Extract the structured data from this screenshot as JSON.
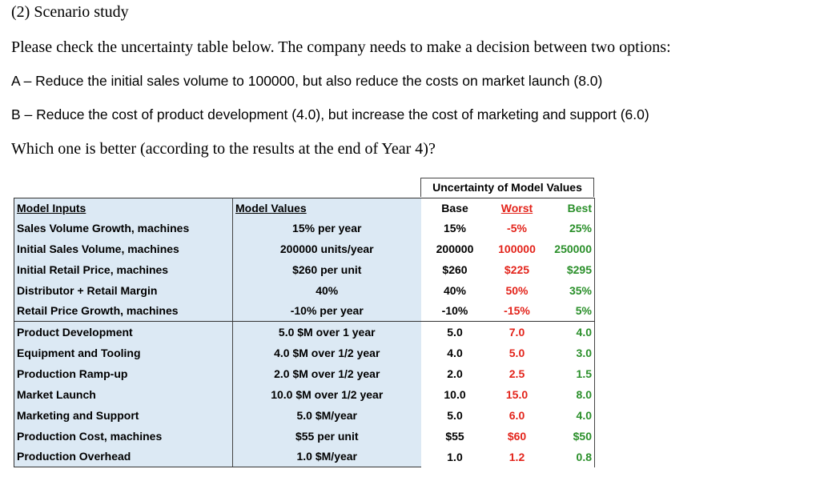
{
  "heading": "(2) Scenario study",
  "paragraphs": [
    "Please check the uncertainty table below. The company needs to make a decision between two options:",
    "A – Reduce the initial sales volume to 100000, but also reduce the costs on market launch (8.0)",
    "B – Reduce the cost of product development (4.0), but increase the cost of marketing and support (6.0)",
    "Which one is better (according to the results at the end of Year 4)?"
  ],
  "table": {
    "uncertainty_title": "Uncertainty of Model Values",
    "columns": [
      "Model Inputs",
      "Model Values",
      "Base",
      "Worst",
      "Best"
    ],
    "rows": [
      [
        "Sales Volume Growth, machines",
        "15% per year",
        "15%",
        "-5%",
        "25%"
      ],
      [
        "Initial Sales Volume, machines",
        "200000 units/year",
        "200000",
        "100000",
        "250000"
      ],
      [
        "Initial Retail Price, machines",
        "$260  per unit",
        "$260",
        "$225",
        "$295"
      ],
      [
        "Distributor + Retail Margin",
        "40%",
        "40%",
        "50%",
        "35%"
      ],
      [
        "Retail Price Growth, machines",
        "-10% per year",
        "-10%",
        "-15%",
        "5%"
      ],
      [
        "Product Development",
        "5.0 $M over 1 year",
        "5.0",
        "7.0",
        "4.0"
      ],
      [
        "Equipment and Tooling",
        "4.0 $M over 1/2 year",
        "4.0",
        "5.0",
        "3.0"
      ],
      [
        "Production Ramp-up",
        "2.0 $M over 1/2 year",
        "2.0",
        "2.5",
        "1.5"
      ],
      [
        "Market Launch",
        "10.0 $M over 1/2 year",
        "10.0",
        "15.0",
        "8.0"
      ],
      [
        "Marketing and Support",
        "5.0 $M/year",
        "5.0",
        "6.0",
        "4.0"
      ],
      [
        "Production Cost, machines",
        "$55  per unit",
        "$55",
        "$60",
        "$50"
      ],
      [
        "Production Overhead",
        "1.0 $M/year",
        "1.0",
        "1.2",
        "0.8"
      ]
    ]
  }
}
